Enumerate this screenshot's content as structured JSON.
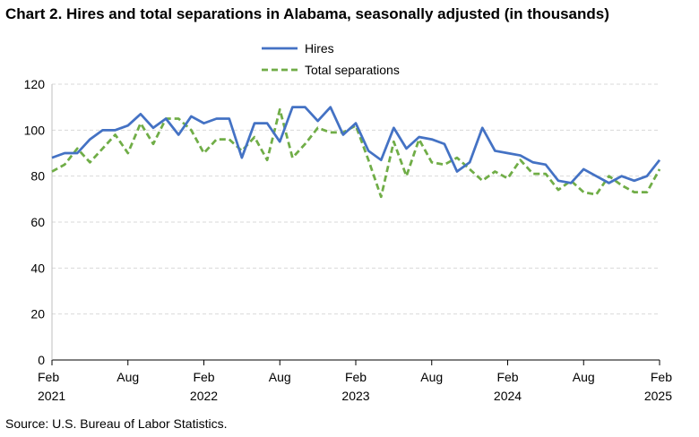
{
  "title": "Chart 2. Hires and total separations in Alabama, seasonally adjusted (in thousands)",
  "source": "Source: U.S. Bureau of Labor Statistics.",
  "chart_data": {
    "type": "line",
    "title": "Chart 2. Hires and total separations in Alabama, seasonally adjusted (in thousands)",
    "ylim": [
      0,
      120
    ],
    "yticks": [
      0,
      20,
      40,
      60,
      80,
      100,
      120
    ],
    "grid": true,
    "legend_position": "top-center",
    "x_start": "2021-02",
    "x_end": "2025-02",
    "x": [
      "2021-02",
      "2021-03",
      "2021-04",
      "2021-05",
      "2021-06",
      "2021-07",
      "2021-08",
      "2021-09",
      "2021-10",
      "2021-11",
      "2021-12",
      "2022-01",
      "2022-02",
      "2022-03",
      "2022-04",
      "2022-05",
      "2022-06",
      "2022-07",
      "2022-08",
      "2022-09",
      "2022-10",
      "2022-11",
      "2022-12",
      "2023-01",
      "2023-02",
      "2023-03",
      "2023-04",
      "2023-05",
      "2023-06",
      "2023-07",
      "2023-08",
      "2023-09",
      "2023-10",
      "2023-11",
      "2023-12",
      "2024-01",
      "2024-02",
      "2024-03",
      "2024-04",
      "2024-05",
      "2024-06",
      "2024-07",
      "2024-08",
      "2024-09",
      "2024-10",
      "2024-11",
      "2024-12",
      "2025-01",
      "2025-02"
    ],
    "x_tick_labels": [
      {
        "month": "Feb",
        "year": "2021",
        "index": 0
      },
      {
        "month": "Aug",
        "year": "",
        "index": 6
      },
      {
        "month": "Feb",
        "year": "2022",
        "index": 12
      },
      {
        "month": "Aug",
        "year": "",
        "index": 18
      },
      {
        "month": "Feb",
        "year": "2023",
        "index": 24
      },
      {
        "month": "Aug",
        "year": "",
        "index": 30
      },
      {
        "month": "Feb",
        "year": "2024",
        "index": 36
      },
      {
        "month": "Aug",
        "year": "",
        "index": 42
      },
      {
        "month": "Feb",
        "year": "2025",
        "index": 48
      }
    ],
    "series": [
      {
        "name": "Hires",
        "color": "#4472C4",
        "dash": "solid",
        "values": [
          88,
          90,
          90,
          96,
          100,
          100,
          102,
          107,
          101,
          105,
          98,
          106,
          103,
          105,
          105,
          88,
          103,
          103,
          95,
          110,
          110,
          104,
          110,
          98,
          103,
          91,
          87,
          101,
          92,
          97,
          96,
          94,
          82,
          86,
          101,
          91,
          90,
          89,
          86,
          85,
          78,
          77,
          83,
          80,
          77,
          80,
          78,
          80,
          87
        ]
      },
      {
        "name": "Total separations",
        "color": "#70AD47",
        "dash": "dashed",
        "values": [
          82,
          85,
          92,
          86,
          92,
          98,
          90,
          103,
          94,
          105,
          105,
          100,
          90,
          96,
          96,
          91,
          97,
          87,
          109,
          88,
          94,
          101,
          99,
          99,
          102,
          87,
          71,
          95,
          80,
          96,
          86,
          85,
          88,
          83,
          78,
          82,
          79,
          87,
          81,
          81,
          74,
          78,
          73,
          72,
          80,
          76,
          73,
          73,
          83
        ]
      }
    ]
  }
}
